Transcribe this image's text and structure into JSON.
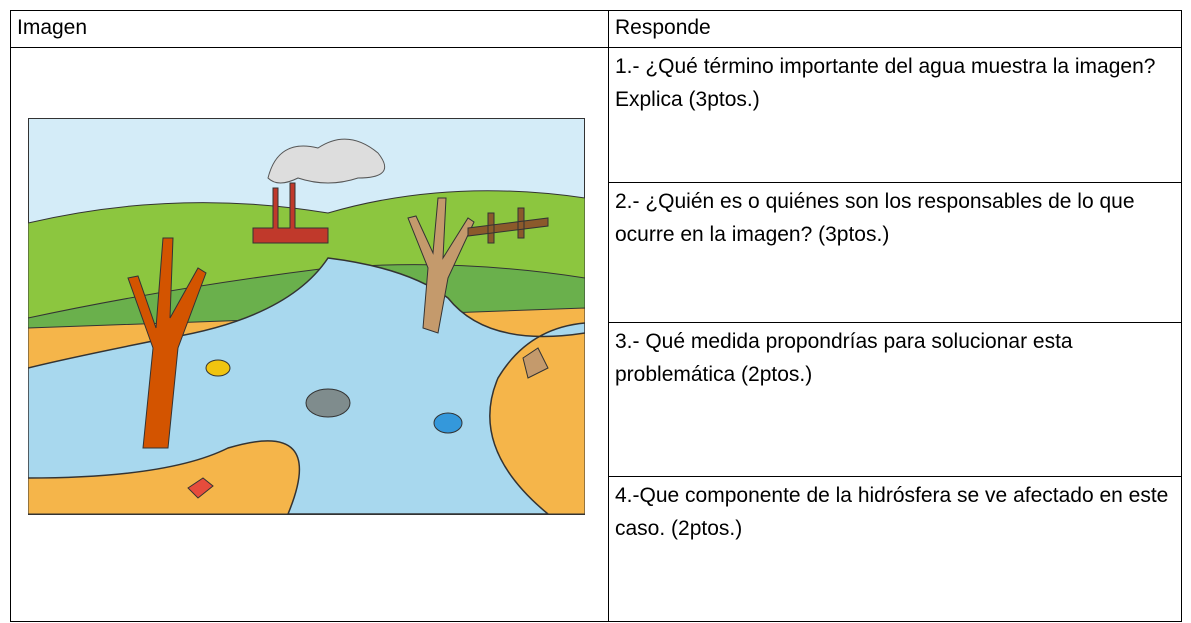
{
  "table": {
    "header": [
      "Imagen",
      "Responde"
    ],
    "questions": [
      "1.- ¿Qué término importante del agua muestra la imagen? Explica (3ptos.)",
      "2.- ¿Quién es o quiénes son los responsables de lo que ocurre en la imagen? (3ptos.)",
      "3.- Qué medida propondrías para solucionar esta problemática (2ptos.)",
      "4.-Que componente de la hidrósfera se ve afectado en este caso. (2ptos.)"
    ]
  }
}
